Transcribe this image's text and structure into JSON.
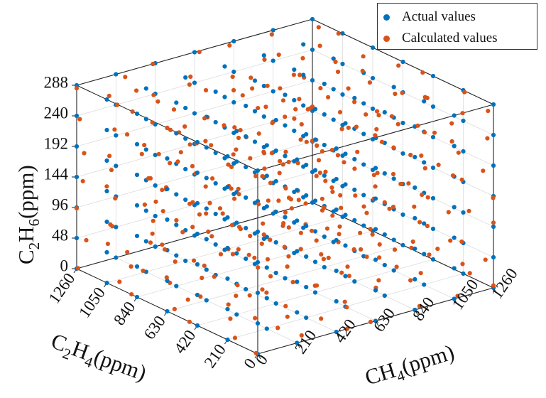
{
  "chart_data": {
    "type": "scatter3d",
    "colors": {
      "actual": "#0072bd",
      "calculated": "#d95319"
    },
    "axes": {
      "x": {
        "label_main": "CH",
        "label_sub": "4",
        "label_unit": "(ppm)",
        "ticks": [
          "0",
          "210",
          "420",
          "630",
          "840",
          "1050",
          "1260"
        ],
        "range": [
          0,
          1260
        ]
      },
      "y": {
        "label_main": "C",
        "label_sub1": "2",
        "label_mid": "H",
        "label_sub2": "4",
        "label_unit": "(ppm)",
        "ticks": [
          "0",
          "210",
          "420",
          "630",
          "840",
          "1050",
          "1260"
        ],
        "range": [
          0,
          1260
        ]
      },
      "z": {
        "label_main": "C",
        "label_sub1": "2",
        "label_mid": "H",
        "label_sub2": "6",
        "label_unit": "(ppm)",
        "ticks": [
          "0",
          "48",
          "96",
          "144",
          "192",
          "240",
          "288"
        ],
        "range": [
          0,
          288
        ]
      }
    },
    "grid_values": {
      "ch4": [
        0,
        210,
        420,
        630,
        840,
        1050,
        1260
      ],
      "c2h4": [
        0,
        210,
        420,
        630,
        840,
        1050,
        1260
      ],
      "c2h6": [
        0,
        48,
        96,
        144,
        192,
        240,
        288
      ]
    },
    "series": [
      {
        "name": "Actual values",
        "description": "full factorial grid of all combinations of the grid values"
      },
      {
        "name": "Calculated values",
        "description": "model predictions, scattered around the actual grid points"
      }
    ],
    "legend_position": "top-right"
  }
}
